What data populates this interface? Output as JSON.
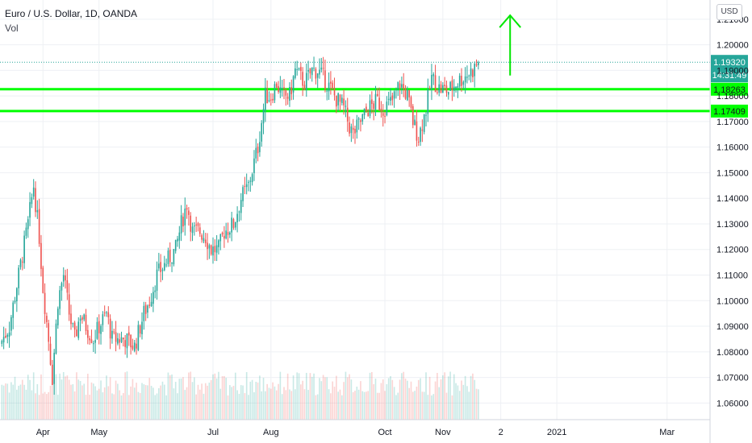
{
  "header": {
    "title": "Euro / U.S. Dollar, 1D, OANDA",
    "volume_label": "Vol",
    "currency": "USD"
  },
  "colors": {
    "up": "#26a69a",
    "down": "#ef5350",
    "level_line": "#00ff00",
    "last_price_bg": "#26a69a",
    "arrow": "#00e600",
    "grid": "#eef0f4"
  },
  "chart_data": {
    "type": "candlestick",
    "symbol": "EURUSD",
    "interval": "1D",
    "y_axis": {
      "min": 1.0535,
      "max": 1.2175,
      "tick_labels": [
        "1.21000",
        "1.20000",
        "1.19000",
        "1.18000",
        "1.17000",
        "1.16000",
        "1.15000",
        "1.14000",
        "1.13000",
        "1.12000",
        "1.11000",
        "1.10000",
        "1.09000",
        "1.08000",
        "1.07000",
        "1.06000"
      ]
    },
    "x_axis": {
      "tick_labels": [
        {
          "label": "Apr",
          "day": 23
        },
        {
          "label": "May",
          "day": 53
        },
        {
          "label": "Jul",
          "day": 114
        },
        {
          "label": "Aug",
          "day": 145
        },
        {
          "label": "Oct",
          "day": 206
        },
        {
          "label": "Nov",
          "day": 237
        },
        {
          "label": "2",
          "day": 268
        },
        {
          "label": "2021",
          "day": 298
        },
        {
          "label": "Mar",
          "day": 357
        }
      ],
      "first_day": 0,
      "last_day": 380
    },
    "grid": true,
    "price_path": [
      [
        0,
        1.083
      ],
      [
        5,
        1.09
      ],
      [
        10,
        1.11
      ],
      [
        15,
        1.13
      ],
      [
        18,
        1.145
      ],
      [
        21,
        1.125
      ],
      [
        23,
        1.105
      ],
      [
        26,
        1.085
      ],
      [
        28,
        1.07
      ],
      [
        31,
        1.1
      ],
      [
        34,
        1.11
      ],
      [
        37,
        1.095
      ],
      [
        40,
        1.085
      ],
      [
        43,
        1.095
      ],
      [
        46,
        1.09
      ],
      [
        50,
        1.085
      ],
      [
        53,
        1.09
      ],
      [
        57,
        1.095
      ],
      [
        60,
        1.085
      ],
      [
        64,
        1.085
      ],
      [
        67,
        1.085
      ],
      [
        72,
        1.082
      ],
      [
        77,
        1.095
      ],
      [
        80,
        1.1
      ],
      [
        84,
        1.11
      ],
      [
        89,
        1.115
      ],
      [
        94,
        1.12
      ],
      [
        97,
        1.13
      ],
      [
        100,
        1.138
      ],
      [
        103,
        1.127
      ],
      [
        107,
        1.127
      ],
      [
        110,
        1.125
      ],
      [
        113,
        1.12
      ],
      [
        117,
        1.12
      ],
      [
        120,
        1.127
      ],
      [
        125,
        1.13
      ],
      [
        129,
        1.14
      ],
      [
        133,
        1.145
      ],
      [
        138,
        1.16
      ],
      [
        142,
        1.18
      ],
      [
        145,
        1.18
      ],
      [
        148,
        1.185
      ],
      [
        151,
        1.18
      ],
      [
        155,
        1.18
      ],
      [
        158,
        1.19
      ],
      [
        163,
        1.185
      ],
      [
        167,
        1.19
      ],
      [
        170,
        1.19
      ],
      [
        175,
        1.185
      ],
      [
        179,
        1.18
      ],
      [
        184,
        1.175
      ],
      [
        187,
        1.168
      ],
      [
        189,
        1.165
      ],
      [
        193,
        1.17
      ],
      [
        197,
        1.175
      ],
      [
        202,
        1.178
      ],
      [
        205,
        1.175
      ],
      [
        210,
        1.178
      ],
      [
        214,
        1.185
      ],
      [
        218,
        1.18
      ],
      [
        221,
        1.17
      ],
      [
        224,
        1.164
      ],
      [
        228,
        1.175
      ],
      [
        231,
        1.187
      ],
      [
        235,
        1.183
      ],
      [
        240,
        1.182
      ],
      [
        244,
        1.185
      ],
      [
        249,
        1.188
      ],
      [
        253,
        1.19
      ],
      [
        256,
        1.1932
      ]
    ],
    "levels": [
      1.18263,
      1.17409
    ],
    "last_price": 1.1932,
    "countdown": "14:31:49",
    "projection_arrow": {
      "day": 273,
      "from": 1.188,
      "to": 1.2115
    },
    "volume": {
      "min_height": 30,
      "max_height": 60
    }
  }
}
